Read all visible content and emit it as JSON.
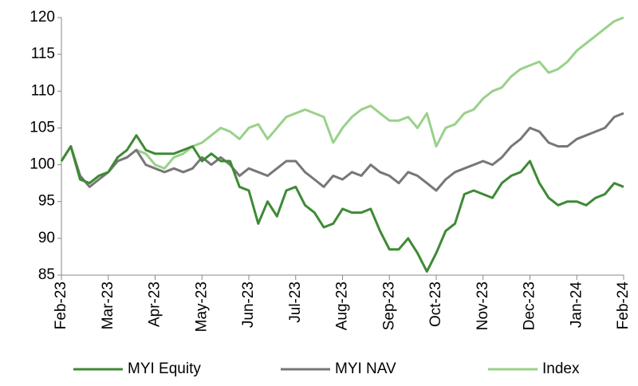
{
  "chart_data": {
    "type": "line",
    "categories": [
      "Feb-23",
      null,
      null,
      null,
      null,
      "Mar-23",
      null,
      null,
      null,
      null,
      "Apr-23",
      null,
      null,
      null,
      null,
      "May-23",
      null,
      null,
      null,
      null,
      "Jun-23",
      null,
      null,
      null,
      null,
      "Jul-23",
      null,
      null,
      null,
      null,
      "Aug-23",
      null,
      null,
      null,
      null,
      "Sep-23",
      null,
      null,
      null,
      null,
      "Oct-23",
      null,
      null,
      null,
      null,
      "Nov-23",
      null,
      null,
      null,
      null,
      "Dec-23",
      null,
      null,
      null,
      null,
      "Jan-24",
      null,
      null,
      null,
      null,
      "Feb-24"
    ],
    "series": [
      {
        "name": "MYI Equity",
        "color": "#3e8a35",
        "values": [
          100.5,
          102.5,
          98,
          97.5,
          98.5,
          99,
          101,
          102,
          104,
          102,
          101.5,
          101.5,
          101.5,
          102,
          102.5,
          100.5,
          101.5,
          100.5,
          100.5,
          97,
          96.5,
          92,
          95,
          93,
          96.5,
          97,
          94.5,
          93.5,
          91.5,
          92,
          94,
          93.5,
          93.5,
          94,
          91,
          88.5,
          88.5,
          90,
          88,
          85.5,
          88,
          91,
          92,
          96,
          96.5,
          96,
          95.5,
          97.5,
          98.5,
          99,
          100.5,
          97.5,
          95.5,
          94.5,
          95,
          95,
          94.5,
          95.5,
          96,
          97.5,
          97
        ]
      },
      {
        "name": "MYI NAV",
        "color": "#777777",
        "values": [
          100.5,
          102.5,
          98.5,
          97,
          98,
          99,
          100.5,
          101,
          102,
          100,
          99.5,
          99,
          99.5,
          99,
          99.5,
          101,
          100,
          101,
          100,
          98.5,
          99.5,
          99,
          98.5,
          99.5,
          100.5,
          100.5,
          99,
          98,
          97,
          98.5,
          98,
          99,
          98.5,
          100,
          99,
          98.5,
          97.5,
          99,
          98.5,
          97.5,
          96.5,
          98,
          99,
          99.5,
          100,
          100.5,
          100,
          101,
          102.5,
          103.5,
          105,
          104.5,
          103,
          102.5,
          102.5,
          103.5,
          104,
          104.5,
          105,
          106.5,
          107
        ]
      },
      {
        "name": "Index",
        "color": "#99d18a",
        "values": [
          100.5,
          102.5,
          98,
          97.5,
          98.5,
          99,
          100.5,
          101,
          102,
          101.5,
          100,
          99.5,
          101,
          101.5,
          102.5,
          103,
          104,
          105,
          104.5,
          103.5,
          105,
          105.5,
          103.5,
          105,
          106.5,
          107,
          107.5,
          107,
          106.5,
          103,
          105,
          106.5,
          107.5,
          108,
          107,
          106,
          106,
          106.5,
          105,
          107,
          102.5,
          105,
          105.5,
          107,
          107.5,
          109,
          110,
          110.5,
          112,
          113,
          113.5,
          114,
          112.5,
          113,
          114,
          115.5,
          116.5,
          117.5,
          118.5,
          119.5,
          120
        ]
      }
    ],
    "ylim": [
      85,
      120
    ],
    "yticks": [
      85,
      90,
      95,
      100,
      105,
      110,
      115,
      120
    ],
    "grid": false,
    "legend": "bottom"
  }
}
